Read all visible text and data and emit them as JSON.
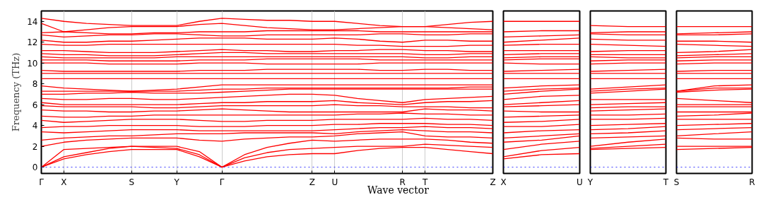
{
  "chart_data": [
    {
      "type": "line",
      "xlabel": "Wave vector",
      "ylabel": "Frequency (THz)",
      "categories": [
        "Γ",
        "X",
        null,
        null,
        "S",
        null,
        "Y",
        null,
        "Γ",
        null,
        null,
        null,
        "Z",
        "U",
        null,
        null,
        "R",
        "T",
        null,
        null,
        "Z"
      ],
      "ylim": [
        -0.6,
        15
      ],
      "yticks": [
        0,
        2,
        4,
        6,
        8,
        10,
        12,
        14
      ],
      "grid": "x",
      "ref_lines": [
        {
          "axis": "y",
          "value": 0,
          "color": "#0000ff",
          "line_style": "dotted"
        }
      ],
      "series": [
        {
          "color": "#ff0000",
          "values": [
            0,
            0.8,
            1.2,
            1.5,
            1.7,
            1.7,
            1.7,
            1.0,
            0,
            0.6,
            1.0,
            1.2,
            1.3,
            1.3,
            1.6,
            1.8,
            1.9,
            1.9,
            1.7,
            1.5,
            1.3
          ]
        },
        {
          "color": "#ff0000",
          "values": [
            0,
            1.0,
            1.4,
            1.8,
            2.0,
            1.9,
            1.8,
            1.2,
            0,
            0.9,
            1.4,
            1.7,
            1.8,
            1.9,
            2.0,
            2.0,
            2.0,
            2.2,
            2.1,
            2.0,
            1.9
          ]
        },
        {
          "color": "#ff0000",
          "values": [
            0,
            1.7,
            1.8,
            1.9,
            2.0,
            2.0,
            2.0,
            1.5,
            0,
            1.2,
            1.9,
            2.3,
            2.6,
            2.5,
            2.6,
            2.7,
            2.7,
            2.7,
            2.6,
            2.4,
            2.3
          ]
        },
        {
          "color": "#ff0000",
          "values": [
            2.0,
            2.4,
            2.6,
            2.7,
            2.8,
            2.8,
            2.8,
            2.6,
            2.5,
            2.7,
            2.8,
            2.9,
            2.9,
            3.0,
            3.2,
            3.3,
            3.4,
            3.0,
            2.9,
            2.9,
            2.8
          ]
        },
        {
          "color": "#ff0000",
          "values": [
            2.6,
            2.8,
            2.9,
            3.0,
            3.0,
            3.1,
            3.2,
            3.2,
            3.2,
            3.3,
            3.3,
            3.3,
            3.3,
            3.2,
            3.4,
            3.5,
            3.6,
            3.5,
            3.4,
            3.4,
            3.3
          ]
        },
        {
          "color": "#ff0000",
          "values": [
            3.4,
            3.3,
            3.4,
            3.5,
            3.6,
            3.6,
            3.6,
            3.5,
            3.5,
            3.5,
            3.5,
            3.5,
            3.5,
            3.6,
            3.7,
            3.8,
            3.8,
            3.9,
            3.8,
            3.8,
            3.7
          ]
        },
        {
          "color": "#ff0000",
          "values": [
            3.8,
            3.9,
            3.9,
            4.0,
            4.0,
            4.0,
            4.0,
            3.9,
            3.9,
            3.9,
            4.0,
            4.0,
            4.0,
            4.1,
            4.1,
            4.2,
            4.2,
            4.2,
            4.1,
            4.1,
            4.0
          ]
        },
        {
          "color": "#ff0000",
          "values": [
            4.5,
            4.3,
            4.4,
            4.5,
            4.6,
            4.6,
            4.6,
            4.5,
            4.4,
            4.4,
            4.5,
            4.5,
            4.5,
            4.6,
            4.6,
            4.6,
            4.6,
            4.7,
            4.6,
            4.6,
            4.5
          ]
        },
        {
          "color": "#ff0000",
          "values": [
            4.9,
            4.8,
            4.8,
            4.9,
            4.9,
            5.0,
            5.0,
            5.0,
            5.0,
            5.0,
            5.0,
            5.0,
            5.0,
            5.0,
            5.1,
            5.1,
            5.2,
            5.1,
            5.1,
            5.0,
            5.0
          ]
        },
        {
          "color": "#ff0000",
          "values": [
            5.5,
            5.4,
            5.4,
            5.3,
            5.3,
            5.4,
            5.4,
            5.5,
            5.6,
            5.5,
            5.4,
            5.3,
            5.3,
            5.3,
            5.3,
            5.3,
            5.3,
            5.6,
            5.5,
            5.5,
            5.4
          ]
        },
        {
          "color": "#ff0000",
          "values": [
            5.9,
            5.8,
            5.8,
            5.8,
            5.8,
            5.7,
            5.7,
            5.8,
            5.9,
            5.9,
            5.9,
            5.9,
            5.9,
            6.0,
            5.9,
            5.9,
            5.8,
            5.8,
            5.8,
            5.7,
            5.7
          ]
        },
        {
          "color": "#ff0000",
          "values": [
            6.2,
            6.0,
            6.0,
            6.0,
            6.0,
            6.0,
            6.0,
            6.1,
            6.2,
            6.2,
            6.3,
            6.3,
            6.3,
            6.4,
            6.2,
            6.1,
            6.0,
            6.2,
            6.3,
            6.3,
            6.4
          ]
        },
        {
          "color": "#ff0000",
          "values": [
            6.6,
            6.5,
            6.5,
            6.6,
            6.6,
            6.5,
            6.5,
            6.6,
            6.7,
            6.8,
            6.9,
            7.0,
            7.0,
            6.9,
            6.6,
            6.4,
            6.2,
            6.5,
            6.6,
            6.7,
            6.8
          ]
        },
        {
          "color": "#ff0000",
          "values": [
            7.0,
            7.0,
            7.1,
            7.1,
            7.2,
            7.1,
            7.1,
            7.1,
            7.2,
            7.3,
            7.4,
            7.5,
            7.5,
            7.5,
            7.5,
            7.5,
            7.5,
            7.5,
            7.5,
            7.5,
            7.5
          ]
        },
        {
          "color": "#ff0000",
          "values": [
            7.3,
            7.3,
            7.3,
            7.3,
            7.3,
            7.3,
            7.3,
            7.4,
            7.5,
            7.5,
            7.6,
            7.6,
            7.6,
            7.6,
            7.6,
            7.6,
            7.6,
            7.6,
            7.6,
            7.7,
            7.7
          ]
        },
        {
          "color": "#ff0000",
          "values": [
            7.8,
            7.6,
            7.5,
            7.4,
            7.3,
            7.4,
            7.5,
            7.7,
            7.9,
            7.9,
            7.9,
            7.9,
            7.9,
            7.9,
            7.9,
            7.9,
            7.9,
            7.9,
            7.9,
            7.9,
            7.9
          ]
        },
        {
          "color": "#ff0000",
          "values": [
            8.5,
            8.5,
            8.5,
            8.5,
            8.5,
            8.5,
            8.5,
            8.5,
            8.5,
            8.5,
            8.5,
            8.5,
            8.5,
            8.5,
            8.5,
            8.5,
            8.5,
            8.5,
            8.5,
            8.5,
            8.5
          ]
        },
        {
          "color": "#ff0000",
          "values": [
            9.0,
            9.0,
            9.0,
            9.0,
            9.0,
            9.0,
            9.0,
            9.0,
            9.0,
            9.0,
            9.0,
            9.0,
            9.0,
            9.0,
            9.0,
            9.0,
            9.0,
            9.0,
            9.0,
            9.0,
            9.0
          ]
        },
        {
          "color": "#ff0000",
          "values": [
            9.3,
            9.2,
            9.2,
            9.2,
            9.2,
            9.2,
            9.2,
            9.3,
            9.3,
            9.3,
            9.4,
            9.4,
            9.4,
            9.4,
            9.4,
            9.3,
            9.3,
            9.4,
            9.4,
            9.3,
            9.3
          ]
        },
        {
          "color": "#ff0000",
          "values": [
            10.0,
            10.0,
            10.0,
            9.9,
            9.9,
            9.9,
            9.9,
            10.0,
            10.0,
            10.0,
            9.9,
            9.9,
            9.9,
            9.9,
            9.9,
            10.0,
            10.0,
            10.0,
            10.0,
            10.0,
            10.0
          ]
        },
        {
          "color": "#ff0000",
          "values": [
            10.3,
            10.3,
            10.3,
            10.2,
            10.2,
            10.2,
            10.2,
            10.3,
            10.3,
            10.3,
            10.4,
            10.4,
            10.4,
            10.4,
            10.4,
            10.3,
            10.3,
            10.3,
            10.3,
            10.3,
            10.3
          ]
        },
        {
          "color": "#ff0000",
          "values": [
            10.6,
            10.5,
            10.5,
            10.5,
            10.5,
            10.5,
            10.6,
            10.6,
            10.6,
            10.6,
            10.6,
            10.6,
            10.6,
            10.6,
            10.6,
            10.6,
            10.6,
            10.5,
            10.5,
            10.6,
            10.6
          ]
        },
        {
          "color": "#ff0000",
          "values": [
            10.9,
            10.8,
            10.8,
            10.7,
            10.7,
            10.7,
            10.8,
            10.9,
            11.0,
            11.0,
            10.9,
            10.9,
            10.9,
            10.9,
            10.9,
            10.9,
            10.9,
            10.8,
            10.8,
            10.9,
            10.9
          ]
        },
        {
          "color": "#ff0000",
          "values": [
            11.2,
            11.2,
            11.1,
            11.0,
            11.0,
            11.0,
            11.1,
            11.2,
            11.3,
            11.2,
            11.2,
            11.1,
            11.1,
            11.2,
            11.2,
            11.3,
            11.3,
            11.2,
            11.2,
            11.1,
            11.1
          ]
        },
        {
          "color": "#ff0000",
          "values": [
            11.8,
            11.7,
            11.7,
            11.8,
            11.8,
            11.8,
            11.8,
            11.8,
            11.8,
            11.8,
            11.8,
            11.8,
            11.8,
            11.8,
            11.7,
            11.7,
            11.6,
            11.6,
            11.6,
            11.7,
            11.7
          ]
        },
        {
          "color": "#ff0000",
          "values": [
            12.2,
            12.0,
            12.0,
            12.1,
            12.1,
            12.2,
            12.3,
            12.4,
            12.4,
            12.4,
            12.3,
            12.3,
            12.3,
            12.4,
            12.3,
            12.1,
            12.0,
            12.2,
            12.2,
            12.1,
            12.1
          ]
        },
        {
          "color": "#ff0000",
          "values": [
            12.7,
            12.5,
            12.6,
            12.7,
            12.7,
            12.8,
            12.8,
            12.7,
            12.6,
            12.6,
            12.7,
            12.7,
            12.7,
            12.7,
            12.7,
            12.8,
            12.8,
            12.7,
            12.7,
            12.8,
            12.8
          ]
        },
        {
          "color": "#ff0000",
          "values": [
            12.9,
            13.0,
            12.9,
            12.8,
            12.8,
            12.9,
            12.9,
            13.0,
            13.0,
            13.0,
            13.1,
            13.1,
            13.1,
            13.1,
            13.1,
            13.0,
            13.0,
            13.0,
            13.0,
            13.0,
            13.0
          ]
        },
        {
          "color": "#ff0000",
          "values": [
            13.8,
            13.0,
            13.2,
            13.4,
            13.5,
            13.5,
            13.5,
            13.7,
            13.8,
            13.6,
            13.4,
            13.3,
            13.2,
            13.2,
            13.3,
            13.4,
            13.5,
            13.5,
            13.4,
            13.3,
            13.2
          ]
        },
        {
          "color": "#ff0000",
          "values": [
            14.3,
            14.0,
            13.8,
            13.7,
            13.6,
            13.6,
            13.6,
            14.0,
            14.3,
            14.2,
            14.1,
            14.1,
            14.0,
            14.0,
            13.8,
            13.6,
            13.5,
            13.5,
            13.7,
            13.9,
            14.0
          ]
        }
      ]
    },
    {
      "type": "line",
      "tick_labels": "x",
      "categories": [
        "X",
        null,
        "U"
      ],
      "ylim": [
        -0.6,
        15
      ],
      "ref_lines": [
        {
          "axis": "y",
          "value": 0,
          "color": "#0000ff",
          "line_style": "dotted"
        }
      ],
      "series": [
        {
          "color": "#ff0000",
          "values": [
            0.8,
            1.2,
            1.3
          ]
        },
        {
          "color": "#ff0000",
          "values": [
            1.0,
            1.6,
            1.9
          ]
        },
        {
          "color": "#ff0000",
          "values": [
            1.7,
            2.2,
            2.5
          ]
        },
        {
          "color": "#ff0000",
          "values": [
            2.4,
            2.6,
            3.0
          ]
        },
        {
          "color": "#ff0000",
          "values": [
            2.8,
            3.0,
            3.2
          ]
        },
        {
          "color": "#ff0000",
          "values": [
            3.3,
            3.5,
            3.6
          ]
        },
        {
          "color": "#ff0000",
          "values": [
            3.9,
            3.9,
            4.1
          ]
        },
        {
          "color": "#ff0000",
          "values": [
            4.3,
            4.4,
            4.6
          ]
        },
        {
          "color": "#ff0000",
          "values": [
            4.8,
            4.9,
            5.0
          ]
        },
        {
          "color": "#ff0000",
          "values": [
            5.4,
            5.3,
            5.3
          ]
        },
        {
          "color": "#ff0000",
          "values": [
            5.8,
            5.9,
            6.0
          ]
        },
        {
          "color": "#ff0000",
          "values": [
            6.0,
            6.2,
            6.4
          ]
        },
        {
          "color": "#ff0000",
          "values": [
            6.5,
            6.8,
            6.9
          ]
        },
        {
          "color": "#ff0000",
          "values": [
            7.0,
            7.3,
            7.5
          ]
        },
        {
          "color": "#ff0000",
          "values": [
            7.3,
            7.5,
            7.6
          ]
        },
        {
          "color": "#ff0000",
          "values": [
            7.6,
            7.8,
            7.9
          ]
        },
        {
          "color": "#ff0000",
          "values": [
            8.5,
            8.5,
            8.5
          ]
        },
        {
          "color": "#ff0000",
          "values": [
            9.0,
            9.0,
            9.0
          ]
        },
        {
          "color": "#ff0000",
          "values": [
            9.2,
            9.3,
            9.4
          ]
        },
        {
          "color": "#ff0000",
          "values": [
            10.0,
            9.9,
            9.9
          ]
        },
        {
          "color": "#ff0000",
          "values": [
            10.3,
            10.4,
            10.4
          ]
        },
        {
          "color": "#ff0000",
          "values": [
            10.5,
            10.6,
            10.6
          ]
        },
        {
          "color": "#ff0000",
          "values": [
            10.8,
            10.9,
            10.9
          ]
        },
        {
          "color": "#ff0000",
          "values": [
            11.2,
            11.2,
            11.2
          ]
        },
        {
          "color": "#ff0000",
          "values": [
            11.7,
            11.8,
            11.8
          ]
        },
        {
          "color": "#ff0000",
          "values": [
            12.0,
            12.2,
            12.4
          ]
        },
        {
          "color": "#ff0000",
          "values": [
            12.5,
            12.6,
            12.7
          ]
        },
        {
          "color": "#ff0000",
          "values": [
            13.0,
            13.1,
            13.1
          ]
        },
        {
          "color": "#ff0000",
          "values": [
            14.0,
            14.0,
            14.0
          ]
        }
      ]
    },
    {
      "type": "line",
      "tick_labels": "x",
      "categories": [
        "Y",
        null,
        "T"
      ],
      "ylim": [
        -0.6,
        15
      ],
      "ref_lines": [
        {
          "axis": "y",
          "value": 0,
          "color": "#0000ff",
          "line_style": "dotted"
        }
      ],
      "series": [
        {
          "color": "#ff0000",
          "values": [
            1.7,
            1.8,
            1.9
          ]
        },
        {
          "color": "#ff0000",
          "values": [
            1.8,
            2.0,
            2.2
          ]
        },
        {
          "color": "#ff0000",
          "values": [
            2.0,
            2.4,
            2.7
          ]
        },
        {
          "color": "#ff0000",
          "values": [
            2.8,
            2.9,
            3.0
          ]
        },
        {
          "color": "#ff0000",
          "values": [
            3.2,
            3.3,
            3.5
          ]
        },
        {
          "color": "#ff0000",
          "values": [
            3.6,
            3.7,
            3.9
          ]
        },
        {
          "color": "#ff0000",
          "values": [
            4.0,
            4.1,
            4.2
          ]
        },
        {
          "color": "#ff0000",
          "values": [
            4.6,
            4.6,
            4.7
          ]
        },
        {
          "color": "#ff0000",
          "values": [
            5.0,
            5.0,
            5.1
          ]
        },
        {
          "color": "#ff0000",
          "values": [
            5.4,
            5.5,
            5.6
          ]
        },
        {
          "color": "#ff0000",
          "values": [
            5.7,
            5.8,
            5.8
          ]
        },
        {
          "color": "#ff0000",
          "values": [
            6.0,
            6.1,
            6.2
          ]
        },
        {
          "color": "#ff0000",
          "values": [
            6.5,
            6.5,
            6.5
          ]
        },
        {
          "color": "#ff0000",
          "values": [
            7.1,
            7.3,
            7.5
          ]
        },
        {
          "color": "#ff0000",
          "values": [
            7.3,
            7.5,
            7.6
          ]
        },
        {
          "color": "#ff0000",
          "values": [
            7.5,
            7.7,
            7.9
          ]
        },
        {
          "color": "#ff0000",
          "values": [
            8.5,
            8.5,
            8.5
          ]
        },
        {
          "color": "#ff0000",
          "values": [
            9.0,
            9.0,
            9.0
          ]
        },
        {
          "color": "#ff0000",
          "values": [
            9.2,
            9.3,
            9.4
          ]
        },
        {
          "color": "#ff0000",
          "values": [
            9.9,
            10.0,
            10.0
          ]
        },
        {
          "color": "#ff0000",
          "values": [
            10.2,
            10.3,
            10.3
          ]
        },
        {
          "color": "#ff0000",
          "values": [
            10.6,
            10.5,
            10.5
          ]
        },
        {
          "color": "#ff0000",
          "values": [
            10.8,
            10.8,
            10.8
          ]
        },
        {
          "color": "#ff0000",
          "values": [
            11.1,
            11.2,
            11.2
          ]
        },
        {
          "color": "#ff0000",
          "values": [
            11.8,
            11.7,
            11.6
          ]
        },
        {
          "color": "#ff0000",
          "values": [
            12.3,
            12.2,
            12.2
          ]
        },
        {
          "color": "#ff0000",
          "values": [
            12.8,
            12.7,
            12.7
          ]
        },
        {
          "color": "#ff0000",
          "values": [
            12.9,
            13.0,
            13.0
          ]
        },
        {
          "color": "#ff0000",
          "values": [
            13.6,
            13.5,
            13.5
          ]
        }
      ]
    },
    {
      "type": "line",
      "tick_labels": "x",
      "categories": [
        "S",
        null,
        "R"
      ],
      "ylim": [
        -0.6,
        15
      ],
      "ref_lines": [
        {
          "axis": "y",
          "value": 0,
          "color": "#0000ff",
          "line_style": "dotted"
        }
      ],
      "series": [
        {
          "color": "#ff0000",
          "values": [
            1.7,
            1.8,
            1.9
          ]
        },
        {
          "color": "#ff0000",
          "values": [
            2.0,
            2.0,
            2.0
          ]
        },
        {
          "color": "#ff0000",
          "values": [
            2.8,
            2.7,
            2.7
          ]
        },
        {
          "color": "#ff0000",
          "values": [
            3.0,
            3.2,
            3.4
          ]
        },
        {
          "color": "#ff0000",
          "values": [
            3.6,
            3.7,
            3.8
          ]
        },
        {
          "color": "#ff0000",
          "values": [
            4.0,
            4.1,
            4.2
          ]
        },
        {
          "color": "#ff0000",
          "values": [
            4.6,
            4.6,
            4.6
          ]
        },
        {
          "color": "#ff0000",
          "values": [
            4.9,
            5.0,
            5.2
          ]
        },
        {
          "color": "#ff0000",
          "values": [
            5.3,
            5.3,
            5.3
          ]
        },
        {
          "color": "#ff0000",
          "values": [
            5.8,
            5.8,
            5.8
          ]
        },
        {
          "color": "#ff0000",
          "values": [
            6.0,
            6.0,
            6.0
          ]
        },
        {
          "color": "#ff0000",
          "values": [
            6.6,
            6.4,
            6.2
          ]
        },
        {
          "color": "#ff0000",
          "values": [
            7.2,
            7.4,
            7.5
          ]
        },
        {
          "color": "#ff0000",
          "values": [
            7.3,
            7.6,
            7.6
          ]
        },
        {
          "color": "#ff0000",
          "values": [
            7.3,
            7.8,
            7.9
          ]
        },
        {
          "color": "#ff0000",
          "values": [
            8.5,
            8.5,
            8.5
          ]
        },
        {
          "color": "#ff0000",
          "values": [
            9.0,
            9.0,
            9.0
          ]
        },
        {
          "color": "#ff0000",
          "values": [
            9.2,
            9.3,
            9.3
          ]
        },
        {
          "color": "#ff0000",
          "values": [
            9.9,
            10.0,
            10.0
          ]
        },
        {
          "color": "#ff0000",
          "values": [
            10.2,
            10.3,
            10.3
          ]
        },
        {
          "color": "#ff0000",
          "values": [
            10.5,
            10.6,
            10.6
          ]
        },
        {
          "color": "#ff0000",
          "values": [
            10.7,
            10.8,
            10.9
          ]
        },
        {
          "color": "#ff0000",
          "values": [
            11.0,
            11.1,
            11.3
          ]
        },
        {
          "color": "#ff0000",
          "values": [
            11.8,
            11.7,
            11.6
          ]
        },
        {
          "color": "#ff0000",
          "values": [
            12.1,
            12.1,
            12.0
          ]
        },
        {
          "color": "#ff0000",
          "values": [
            12.7,
            12.7,
            12.8
          ]
        },
        {
          "color": "#ff0000",
          "values": [
            12.8,
            12.9,
            13.0
          ]
        },
        {
          "color": "#ff0000",
          "values": [
            13.5,
            13.5,
            13.5
          ]
        }
      ]
    }
  ]
}
